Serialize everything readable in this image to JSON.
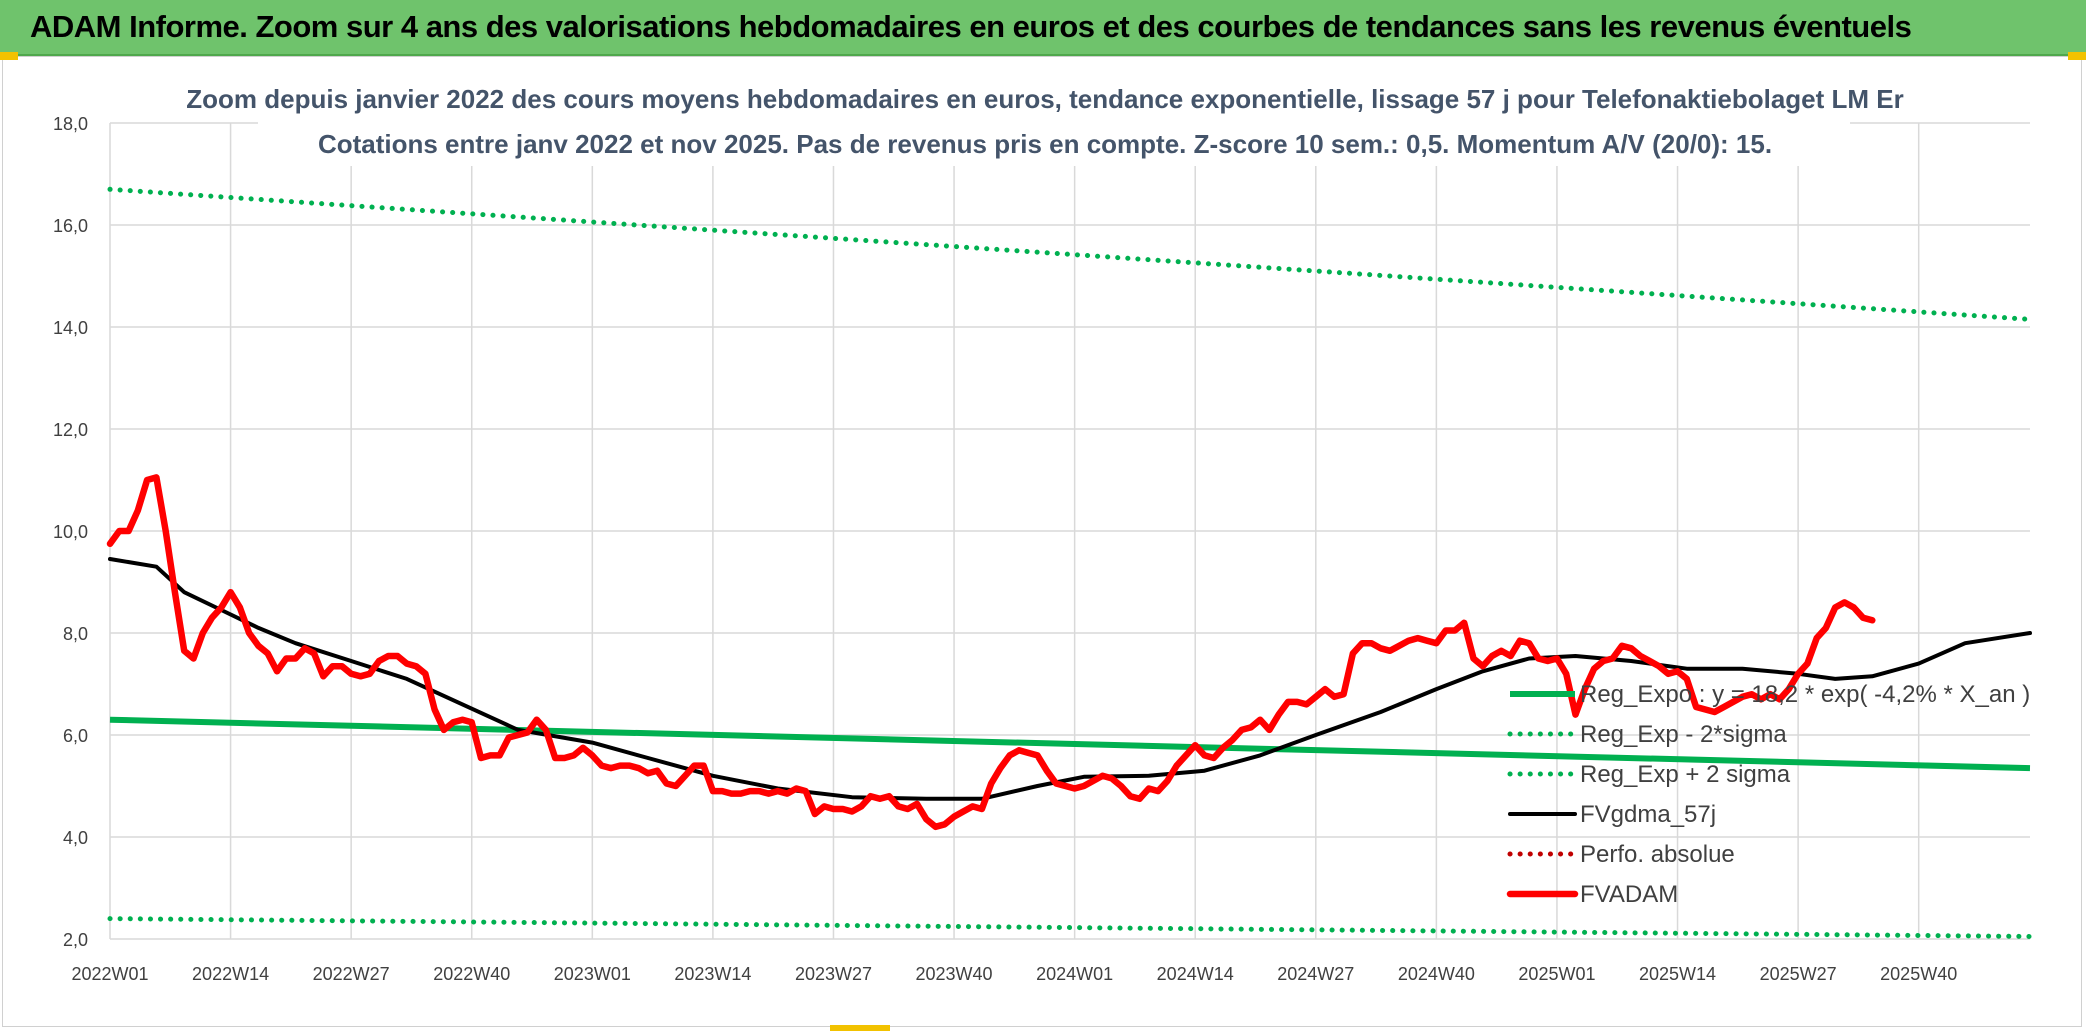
{
  "header": {
    "banner_title": "ADAM Informe. Zoom sur 4 ans des valorisations hebdomadaires en euros et des courbes de tendances sans les revenus éventuels"
  },
  "colors": {
    "banner_bg": "#6fc36c",
    "green": "#00b050",
    "black": "#000000",
    "red": "#ff0000",
    "dotted_red": "#c00000",
    "grid": "#d9d9d9",
    "title": "#44546a"
  },
  "chart_data": {
    "type": "line",
    "title": "Zoom depuis janvier 2022 des cours moyens hebdomadaires en euros, tendance exponentielle, lissage 57 j pour Telefonaktiebolaget LM Er",
    "subtitle": "Cotations entre janv 2022 et nov 2025. Pas de revenus pris en compte. Z-score 10 sem.: 0,5. Momentum A/V (20/0): 15.",
    "xlabel": "",
    "ylabel": "",
    "ylim": [
      2,
      18
    ],
    "x_range": [
      0,
      207
    ],
    "y_ticks": [
      "2,0",
      "4,0",
      "6,0",
      "8,0",
      "10,0",
      "12,0",
      "14,0",
      "16,0",
      "18,0"
    ],
    "y_tick_values": [
      2,
      4,
      6,
      8,
      10,
      12,
      14,
      16,
      18
    ],
    "x_ticks": [
      "2022W01",
      "2022W14",
      "2022W27",
      "2022W40",
      "2023W01",
      "2023W14",
      "2023W27",
      "2023W40",
      "2024W01",
      "2024W14",
      "2024W27",
      "2024W40",
      "2025W01",
      "2025W14",
      "2025W27",
      "2025W40"
    ],
    "x_tick_values": [
      0,
      13,
      26,
      39,
      52,
      65,
      78,
      91,
      104,
      117,
      130,
      143,
      156,
      169,
      182,
      195
    ],
    "grid": true,
    "legend": {
      "position": "right"
    },
    "series": [
      {
        "name": "Reg_Expo : y = 18,2 * exp( -4,2% * X_an )",
        "style": "solid",
        "color": "#00b050",
        "points": [
          [
            0,
            6.3
          ],
          [
            207,
            5.35
          ]
        ]
      },
      {
        "name": "Reg_Exp - 2*sigma",
        "style": "dotted",
        "color": "#00b050",
        "points": [
          [
            0,
            2.4
          ],
          [
            207,
            2.05
          ]
        ]
      },
      {
        "name": "Reg_Exp + 2 sigma",
        "style": "dotted",
        "color": "#00b050",
        "points": [
          [
            0,
            16.7
          ],
          [
            207,
            14.15
          ]
        ]
      },
      {
        "name": "FVgdma_57j",
        "style": "solid",
        "color": "#000000",
        "points": [
          [
            0,
            9.45
          ],
          [
            5,
            9.3
          ],
          [
            8,
            8.8
          ],
          [
            12,
            8.45
          ],
          [
            16,
            8.1
          ],
          [
            20,
            7.8
          ],
          [
            26,
            7.45
          ],
          [
            32,
            7.1
          ],
          [
            38,
            6.6
          ],
          [
            44,
            6.1
          ],
          [
            52,
            5.85
          ],
          [
            58,
            5.55
          ],
          [
            65,
            5.2
          ],
          [
            72,
            4.95
          ],
          [
            80,
            4.78
          ],
          [
            88,
            4.75
          ],
          [
            94,
            4.75
          ],
          [
            100,
            5.0
          ],
          [
            105,
            5.18
          ],
          [
            112,
            5.2
          ],
          [
            118,
            5.3
          ],
          [
            124,
            5.6
          ],
          [
            130,
            6.0
          ],
          [
            137,
            6.45
          ],
          [
            143,
            6.9
          ],
          [
            148,
            7.25
          ],
          [
            153,
            7.5
          ],
          [
            158,
            7.55
          ],
          [
            164,
            7.45
          ],
          [
            170,
            7.3
          ],
          [
            176,
            7.3
          ],
          [
            182,
            7.2
          ],
          [
            186,
            7.1
          ],
          [
            190,
            7.15
          ],
          [
            195,
            7.4
          ],
          [
            200,
            7.8
          ],
          [
            207,
            8.0
          ]
        ]
      },
      {
        "name": "Perfo. absolue",
        "style": "dotted",
        "color": "#c00000",
        "points": []
      },
      {
        "name": "FVADAM",
        "style": "solid",
        "color": "#ff0000",
        "points": [
          [
            0,
            9.75
          ],
          [
            1,
            10.0
          ],
          [
            2,
            10.0
          ],
          [
            3,
            10.4
          ],
          [
            4,
            11.0
          ],
          [
            5,
            11.05
          ],
          [
            6,
            10.0
          ],
          [
            7,
            8.8
          ],
          [
            8,
            7.65
          ],
          [
            9,
            7.5
          ],
          [
            10,
            8.0
          ],
          [
            11,
            8.3
          ],
          [
            12,
            8.5
          ],
          [
            13,
            8.8
          ],
          [
            14,
            8.5
          ],
          [
            15,
            8.0
          ],
          [
            16,
            7.75
          ],
          [
            17,
            7.6
          ],
          [
            18,
            7.25
          ],
          [
            19,
            7.5
          ],
          [
            20,
            7.5
          ],
          [
            21,
            7.7
          ],
          [
            22,
            7.6
          ],
          [
            23,
            7.15
          ],
          [
            24,
            7.35
          ],
          [
            25,
            7.35
          ],
          [
            26,
            7.2
          ],
          [
            27,
            7.15
          ],
          [
            28,
            7.2
          ],
          [
            29,
            7.45
          ],
          [
            30,
            7.55
          ],
          [
            31,
            7.55
          ],
          [
            32,
            7.4
          ],
          [
            33,
            7.35
          ],
          [
            34,
            7.2
          ],
          [
            35,
            6.5
          ],
          [
            36,
            6.1
          ],
          [
            37,
            6.25
          ],
          [
            38,
            6.3
          ],
          [
            39,
            6.25
          ],
          [
            40,
            5.55
          ],
          [
            41,
            5.6
          ],
          [
            42,
            5.6
          ],
          [
            43,
            5.95
          ],
          [
            44,
            6.0
          ],
          [
            45,
            6.05
          ],
          [
            46,
            6.3
          ],
          [
            47,
            6.1
          ],
          [
            48,
            5.55
          ],
          [
            49,
            5.55
          ],
          [
            50,
            5.6
          ],
          [
            51,
            5.75
          ],
          [
            52,
            5.6
          ],
          [
            53,
            5.4
          ],
          [
            54,
            5.35
          ],
          [
            55,
            5.4
          ],
          [
            56,
            5.4
          ],
          [
            57,
            5.35
          ],
          [
            58,
            5.25
          ],
          [
            59,
            5.3
          ],
          [
            60,
            5.05
          ],
          [
            61,
            5.0
          ],
          [
            62,
            5.2
          ],
          [
            63,
            5.4
          ],
          [
            64,
            5.4
          ],
          [
            65,
            4.9
          ],
          [
            66,
            4.9
          ],
          [
            67,
            4.85
          ],
          [
            68,
            4.85
          ],
          [
            69,
            4.9
          ],
          [
            70,
            4.9
          ],
          [
            71,
            4.85
          ],
          [
            72,
            4.9
          ],
          [
            73,
            4.85
          ],
          [
            74,
            4.95
          ],
          [
            75,
            4.9
          ],
          [
            76,
            4.45
          ],
          [
            77,
            4.6
          ],
          [
            78,
            4.55
          ],
          [
            79,
            4.55
          ],
          [
            80,
            4.5
          ],
          [
            81,
            4.6
          ],
          [
            82,
            4.8
          ],
          [
            83,
            4.75
          ],
          [
            84,
            4.8
          ],
          [
            85,
            4.6
          ],
          [
            86,
            4.55
          ],
          [
            87,
            4.65
          ],
          [
            88,
            4.35
          ],
          [
            89,
            4.2
          ],
          [
            90,
            4.25
          ],
          [
            91,
            4.4
          ],
          [
            92,
            4.5
          ],
          [
            93,
            4.6
          ],
          [
            94,
            4.55
          ],
          [
            95,
            5.05
          ],
          [
            96,
            5.35
          ],
          [
            97,
            5.6
          ],
          [
            98,
            5.7
          ],
          [
            99,
            5.65
          ],
          [
            100,
            5.6
          ],
          [
            101,
            5.3
          ],
          [
            102,
            5.05
          ],
          [
            103,
            5.0
          ],
          [
            104,
            4.95
          ],
          [
            105,
            5.0
          ],
          [
            106,
            5.1
          ],
          [
            107,
            5.2
          ],
          [
            108,
            5.15
          ],
          [
            109,
            5.0
          ],
          [
            110,
            4.8
          ],
          [
            111,
            4.75
          ],
          [
            112,
            4.95
          ],
          [
            113,
            4.9
          ],
          [
            114,
            5.1
          ],
          [
            115,
            5.4
          ],
          [
            116,
            5.6
          ],
          [
            117,
            5.8
          ],
          [
            118,
            5.6
          ],
          [
            119,
            5.55
          ],
          [
            120,
            5.75
          ],
          [
            121,
            5.9
          ],
          [
            122,
            6.1
          ],
          [
            123,
            6.15
          ],
          [
            124,
            6.3
          ],
          [
            125,
            6.1
          ],
          [
            126,
            6.4
          ],
          [
            127,
            6.65
          ],
          [
            128,
            6.65
          ],
          [
            129,
            6.6
          ],
          [
            130,
            6.75
          ],
          [
            131,
            6.9
          ],
          [
            132,
            6.75
          ],
          [
            133,
            6.8
          ],
          [
            134,
            7.6
          ],
          [
            135,
            7.8
          ],
          [
            136,
            7.8
          ],
          [
            137,
            7.7
          ],
          [
            138,
            7.65
          ],
          [
            139,
            7.75
          ],
          [
            140,
            7.85
          ],
          [
            141,
            7.9
          ],
          [
            142,
            7.85
          ],
          [
            143,
            7.8
          ],
          [
            144,
            8.05
          ],
          [
            145,
            8.05
          ],
          [
            146,
            8.2
          ],
          [
            147,
            7.5
          ],
          [
            148,
            7.35
          ],
          [
            149,
            7.55
          ],
          [
            150,
            7.65
          ],
          [
            151,
            7.55
          ],
          [
            152,
            7.85
          ],
          [
            153,
            7.8
          ],
          [
            154,
            7.5
          ],
          [
            155,
            7.45
          ],
          [
            156,
            7.5
          ],
          [
            157,
            7.2
          ],
          [
            158,
            6.4
          ],
          [
            159,
            6.9
          ],
          [
            160,
            7.3
          ],
          [
            161,
            7.45
          ],
          [
            162,
            7.5
          ],
          [
            163,
            7.75
          ],
          [
            164,
            7.7
          ],
          [
            165,
            7.55
          ],
          [
            166,
            7.45
          ],
          [
            167,
            7.35
          ],
          [
            168,
            7.2
          ],
          [
            169,
            7.25
          ],
          [
            170,
            7.1
          ],
          [
            171,
            6.55
          ],
          [
            172,
            6.5
          ],
          [
            173,
            6.45
          ],
          [
            174,
            6.55
          ],
          [
            175,
            6.65
          ],
          [
            176,
            6.75
          ],
          [
            177,
            6.8
          ],
          [
            178,
            6.7
          ],
          [
            179,
            6.8
          ],
          [
            180,
            6.7
          ],
          [
            181,
            6.9
          ],
          [
            182,
            7.2
          ],
          [
            183,
            7.4
          ],
          [
            184,
            7.9
          ],
          [
            185,
            8.1
          ],
          [
            186,
            8.5
          ],
          [
            187,
            8.6
          ],
          [
            188,
            8.5
          ],
          [
            189,
            8.3
          ],
          [
            190,
            8.25
          ]
        ]
      }
    ]
  }
}
